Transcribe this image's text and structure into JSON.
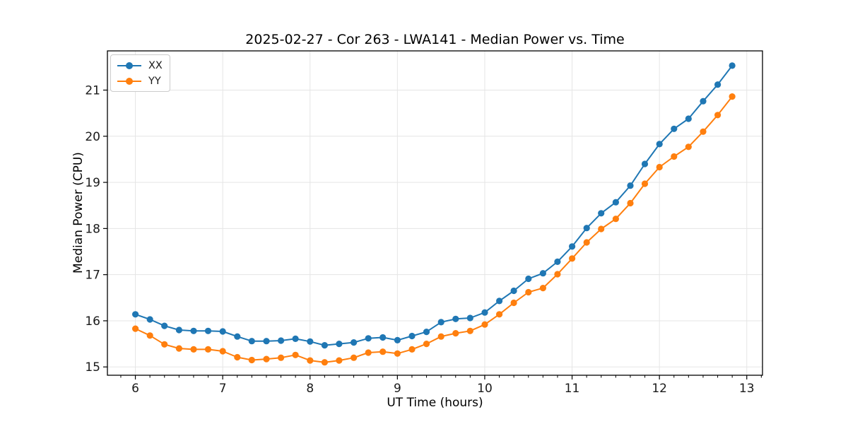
{
  "chart_data": {
    "type": "line",
    "title": "2025-02-27 - Cor 263 - LWA141 - Median Power vs. Time",
    "xlabel": "UT Time (hours)",
    "ylabel": "Median Power (CPU)",
    "xlim": [
      5.68,
      13.18
    ],
    "ylim": [
      14.82,
      21.85
    ],
    "x_ticks": [
      6,
      7,
      8,
      9,
      10,
      11,
      12,
      13
    ],
    "y_ticks": [
      15,
      16,
      17,
      18,
      19,
      20,
      21
    ],
    "x_minor_step": 0.1667,
    "grid": true,
    "legend_position": "upper-left",
    "x": [
      6,
      6.1667,
      6.3333,
      6.5,
      6.6667,
      6.8333,
      7,
      7.1667,
      7.3333,
      7.5,
      7.6667,
      7.8333,
      8,
      8.1667,
      8.3333,
      8.5,
      8.6667,
      8.8333,
      9,
      9.1667,
      9.3333,
      9.5,
      9.6667,
      9.8333,
      10,
      10.1667,
      10.3333,
      10.5,
      10.6667,
      10.8333,
      11,
      11.1667,
      11.3333,
      11.5,
      11.6667,
      11.8333,
      12,
      12.1667,
      12.3333,
      12.5,
      12.6667,
      12.8333
    ],
    "series": [
      {
        "name": "XX",
        "color": "#1f77b4",
        "values": [
          16.14,
          16.03,
          15.89,
          15.8,
          15.78,
          15.78,
          15.77,
          15.66,
          15.56,
          15.56,
          15.57,
          15.61,
          15.55,
          15.47,
          15.5,
          15.53,
          15.62,
          15.64,
          15.58,
          15.67,
          15.76,
          15.97,
          16.04,
          16.06,
          16.18,
          16.43,
          16.65,
          16.91,
          17.03,
          17.28,
          17.61,
          18.01,
          18.33,
          18.57,
          18.93,
          19.4,
          19.83,
          20.16,
          20.38,
          20.76,
          21.12,
          21.53
        ]
      },
      {
        "name": "YY",
        "color": "#ff7f0e",
        "values": [
          15.83,
          15.68,
          15.49,
          15.4,
          15.38,
          15.38,
          15.34,
          15.21,
          15.15,
          15.17,
          15.2,
          15.26,
          15.14,
          15.1,
          15.14,
          15.2,
          15.31,
          15.33,
          15.29,
          15.38,
          15.5,
          15.66,
          15.73,
          15.78,
          15.92,
          16.14,
          16.39,
          16.62,
          16.71,
          17.01,
          17.35,
          17.7,
          17.99,
          18.21,
          18.55,
          18.97,
          19.33,
          19.56,
          19.77,
          20.1,
          20.46,
          20.86
        ]
      }
    ]
  }
}
